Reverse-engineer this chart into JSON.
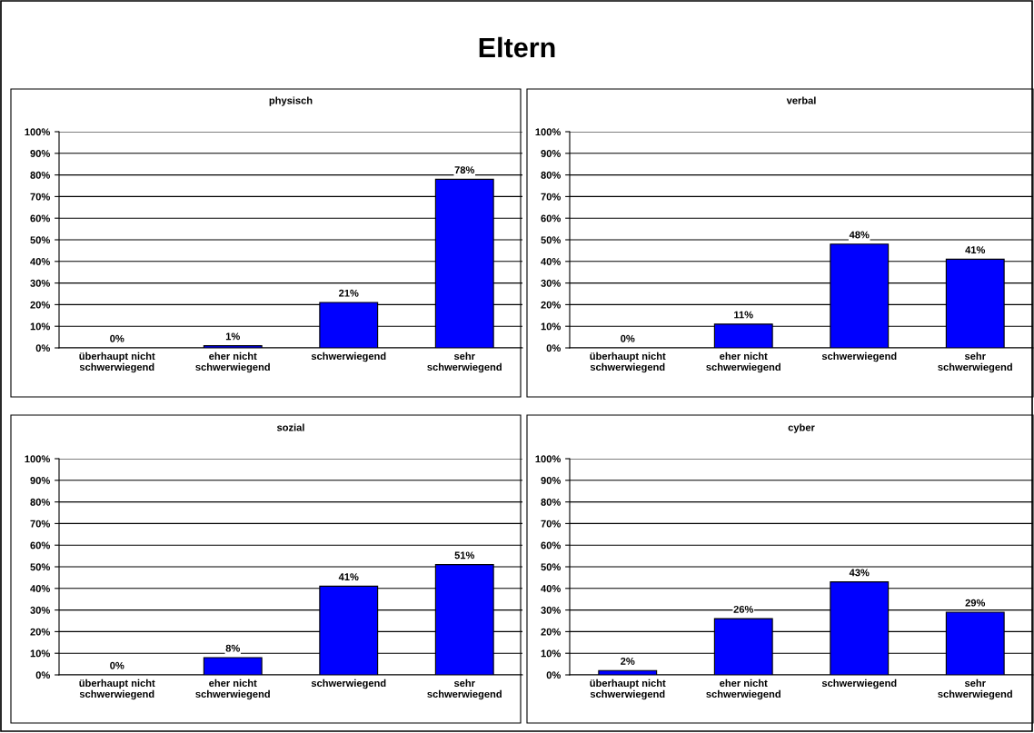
{
  "chart_data": [
    {
      "type": "bar",
      "title": "physisch",
      "annotations": [
        "Eltern"
      ],
      "categories": [
        "überhaupt nicht\nschwerwiegend",
        "eher nicht\nschwerwiegend",
        "schwerwiegend",
        "sehr\nschwerwiegend"
      ],
      "values": [
        0,
        1,
        21,
        78
      ],
      "value_labels": [
        "0%",
        "1%",
        "21%",
        "78%"
      ],
      "color": "#0000ff",
      "ylim": [
        0,
        100
      ],
      "yticks": [
        {
          "value": 0,
          "label": "0%"
        },
        {
          "value": 10,
          "label": "10%"
        },
        {
          "value": 20,
          "label": "20%"
        },
        {
          "value": 30,
          "label": "30%"
        },
        {
          "value": 40,
          "label": "40%"
        },
        {
          "value": 50,
          "label": "50%"
        },
        {
          "value": 60,
          "label": "60%"
        },
        {
          "value": 70,
          "label": "70%"
        },
        {
          "value": 80,
          "label": "80%"
        },
        {
          "value": 90,
          "label": "90%"
        },
        {
          "value": 100,
          "label": "100%"
        }
      ],
      "grid": "y"
    },
    {
      "type": "bar",
      "title": "verbal",
      "categories": [
        "überhaupt nicht\nschwerwiegend",
        "eher nicht\nschwerwiegend",
        "schwerwiegend",
        "sehr\nschwerwiegend"
      ],
      "values": [
        0,
        11,
        48,
        41
      ],
      "value_labels": [
        "0%",
        "11%",
        "48%",
        "41%"
      ],
      "color": "#0000ff",
      "ylim": [
        0,
        100
      ],
      "yticks": [
        {
          "value": 0,
          "label": "0%"
        },
        {
          "value": 10,
          "label": "10%"
        },
        {
          "value": 20,
          "label": "20%"
        },
        {
          "value": 30,
          "label": "30%"
        },
        {
          "value": 40,
          "label": "40%"
        },
        {
          "value": 50,
          "label": "50%"
        },
        {
          "value": 60,
          "label": "60%"
        },
        {
          "value": 70,
          "label": "70%"
        },
        {
          "value": 80,
          "label": "80%"
        },
        {
          "value": 90,
          "label": "90%"
        },
        {
          "value": 100,
          "label": "100%"
        }
      ],
      "grid": "y"
    },
    {
      "type": "bar",
      "title": "sozial",
      "categories": [
        "überhaupt nicht\nschwerwiegend",
        "eher nicht\nschwerwiegend",
        "schwerwiegend",
        "sehr\nschwerwiegend"
      ],
      "values": [
        0,
        8,
        41,
        51
      ],
      "value_labels": [
        "0%",
        "8%",
        "41%",
        "51%"
      ],
      "color": "#0000ff",
      "ylim": [
        0,
        100
      ],
      "yticks": [
        {
          "value": 0,
          "label": "0%"
        },
        {
          "value": 10,
          "label": "10%"
        },
        {
          "value": 20,
          "label": "20%"
        },
        {
          "value": 30,
          "label": "30%"
        },
        {
          "value": 40,
          "label": "40%"
        },
        {
          "value": 50,
          "label": "50%"
        },
        {
          "value": 60,
          "label": "60%"
        },
        {
          "value": 70,
          "label": "70%"
        },
        {
          "value": 80,
          "label": "80%"
        },
        {
          "value": 90,
          "label": "90%"
        },
        {
          "value": 100,
          "label": "100%"
        }
      ],
      "grid": "y"
    },
    {
      "type": "bar",
      "title": "cyber",
      "categories": [
        "überhaupt nicht\nschwerwiegend",
        "eher nicht\nschwerwiegend",
        "schwerwiegend",
        "sehr\nschwerwiegend"
      ],
      "values": [
        2,
        26,
        43,
        29
      ],
      "value_labels": [
        "2%",
        "26%",
        "43%",
        "29%"
      ],
      "color": "#0000ff",
      "ylim": [
        0,
        100
      ],
      "yticks": [
        {
          "value": 0,
          "label": "0%"
        },
        {
          "value": 10,
          "label": "10%"
        },
        {
          "value": 20,
          "label": "20%"
        },
        {
          "value": 30,
          "label": "30%"
        },
        {
          "value": 40,
          "label": "40%"
        },
        {
          "value": 50,
          "label": "50%"
        },
        {
          "value": 60,
          "label": "60%"
        },
        {
          "value": 70,
          "label": "70%"
        },
        {
          "value": 80,
          "label": "80%"
        },
        {
          "value": 90,
          "label": "90%"
        },
        {
          "value": 100,
          "label": "100%"
        }
      ],
      "grid": "y"
    }
  ]
}
